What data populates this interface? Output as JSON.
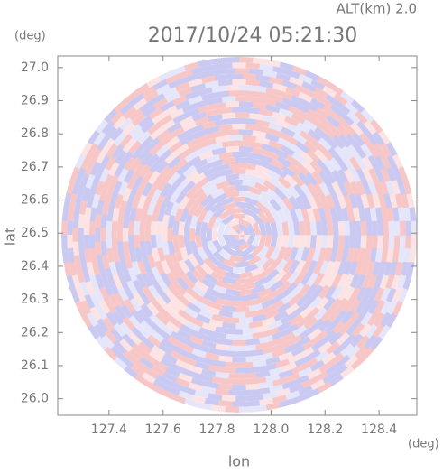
{
  "chart_data": {
    "type": "radar-ppi",
    "title": "2017/10/24 05:21:30",
    "subtitle": "ALT(km) 2.0",
    "y_unit": "(deg)",
    "x_unit": "(deg)",
    "ylabel": "lat",
    "xlabel": "lon",
    "xlim": [
      127.21,
      128.54
    ],
    "ylim": [
      25.95,
      27.035
    ],
    "xticks": [
      127.4,
      127.6,
      127.8,
      {
        "value": 128.0,
        "label": "128.0"
      },
      128.2,
      128.4
    ],
    "yticks": [
      {
        "value": 26.0,
        "label": "26.0"
      },
      26.1,
      26.2,
      26.3,
      26.4,
      26.5,
      26.6,
      26.7,
      26.8,
      26.9,
      {
        "value": 27.0,
        "label": "27.0"
      }
    ],
    "grid": false
  }
}
